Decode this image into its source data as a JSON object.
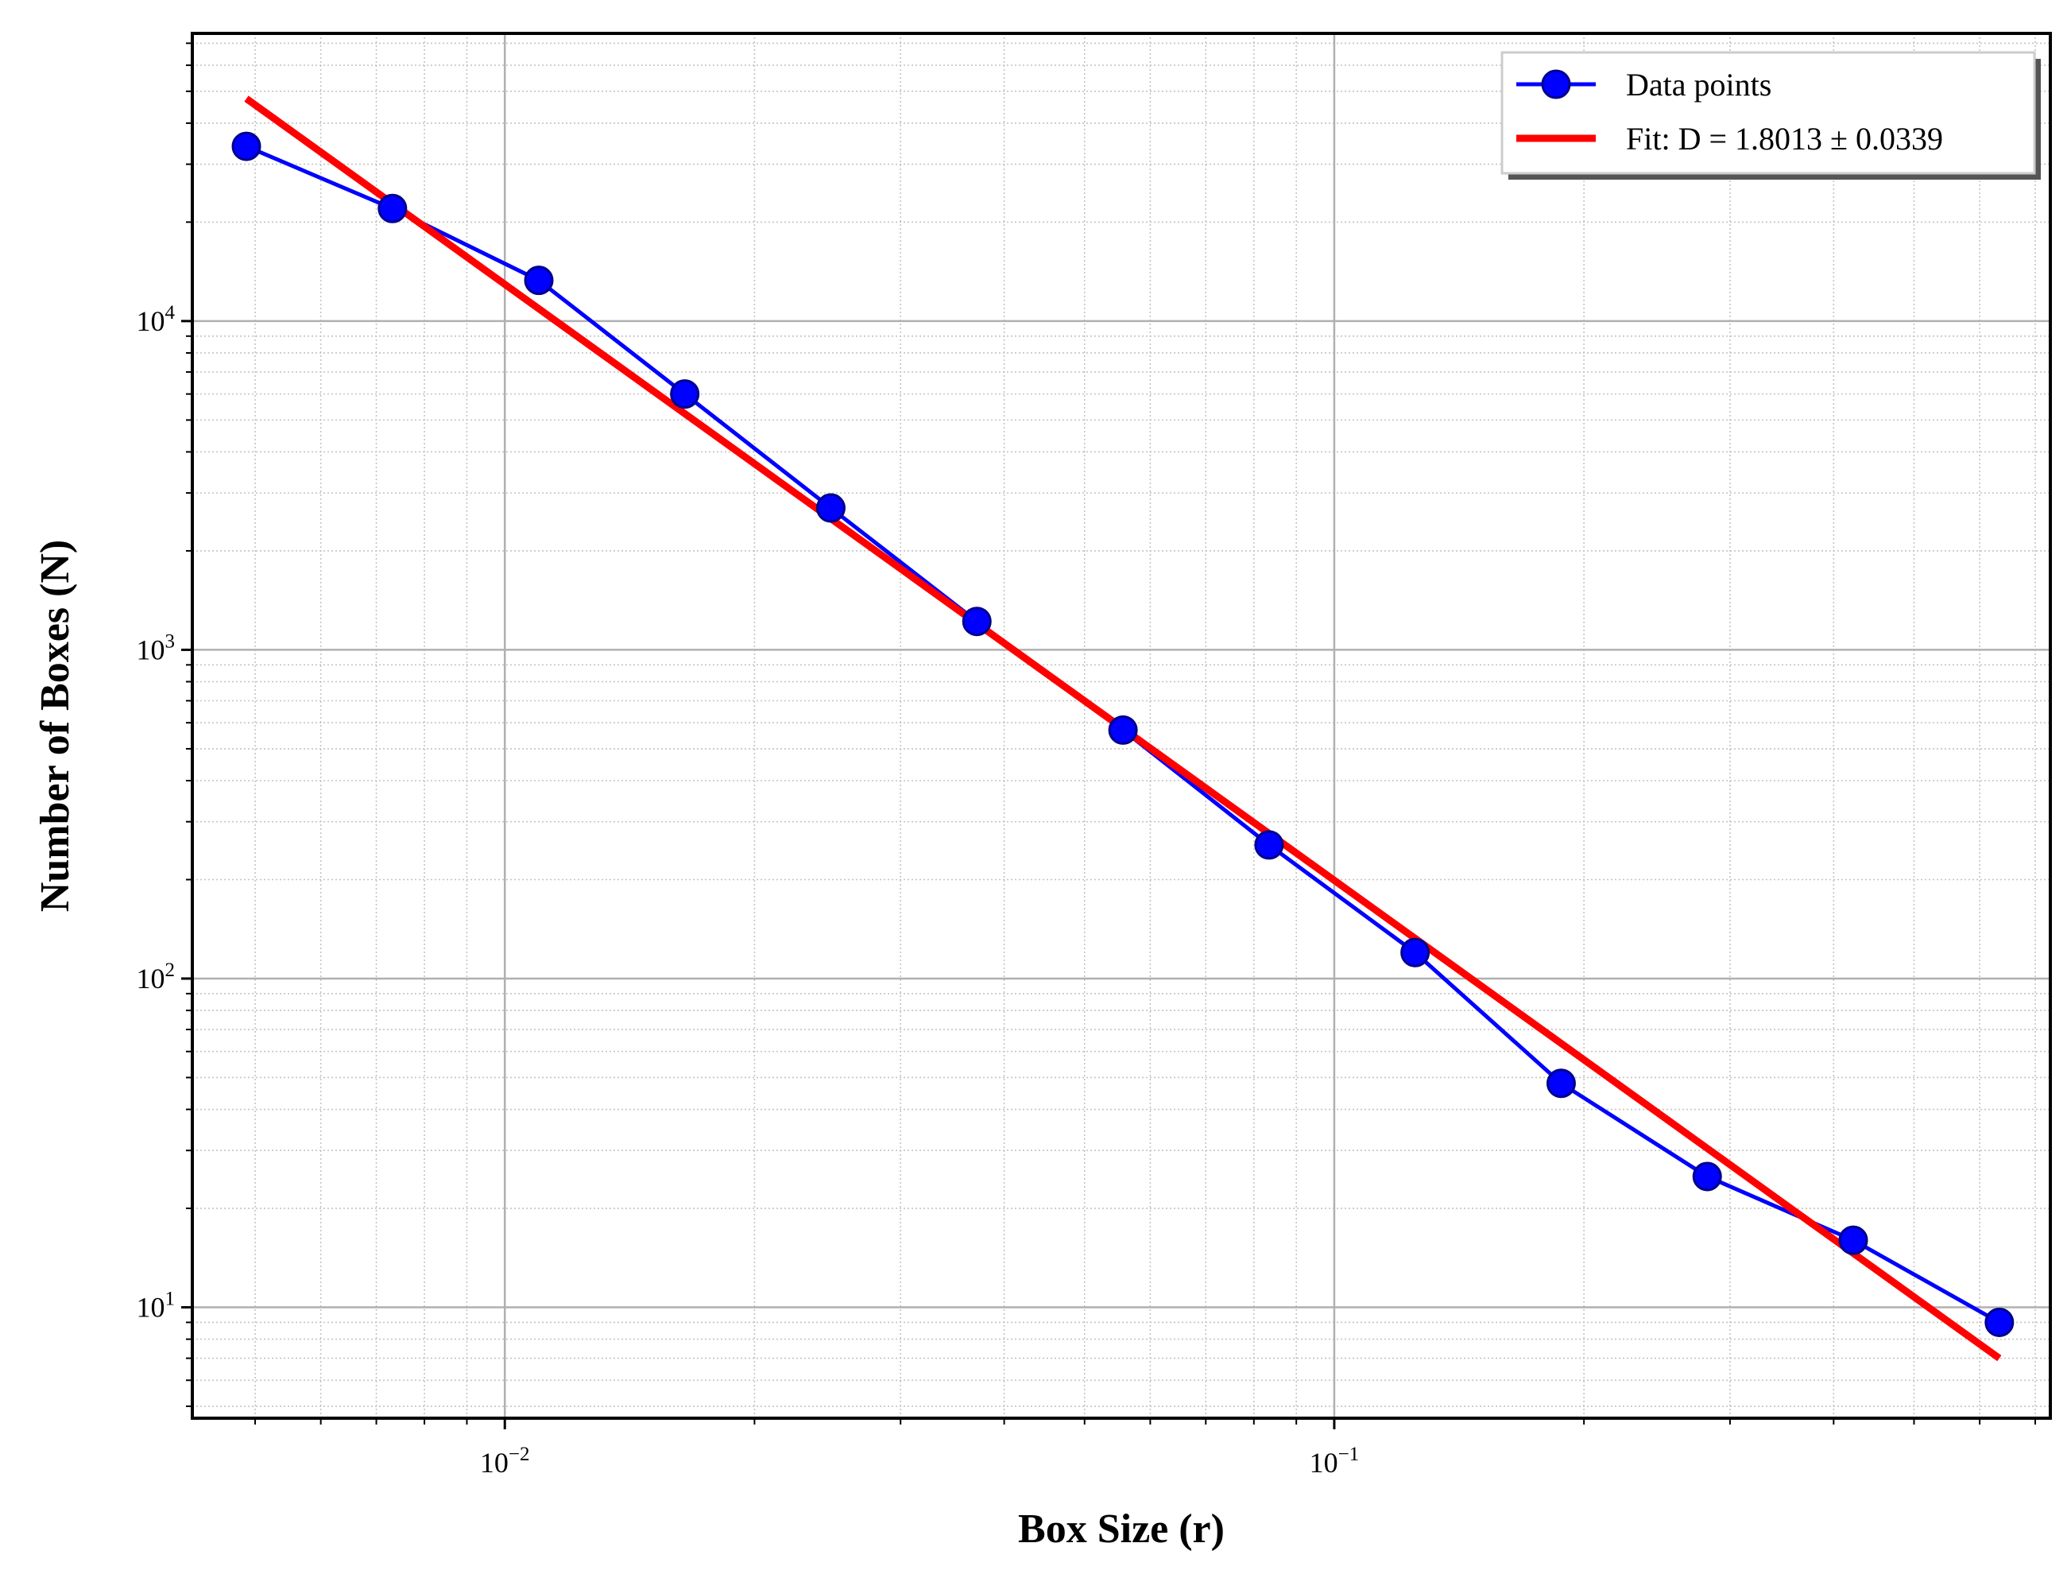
{
  "chart_data": {
    "type": "line",
    "title": "",
    "xlabel": "Box Size (r)",
    "ylabel": "Number of Boxes (N)",
    "xscale": "log",
    "yscale": "log",
    "xlim": [
      0.0042,
      0.73
    ],
    "ylim": [
      4.6,
      75000
    ],
    "x_ticks": [
      {
        "value": 0.01,
        "base": "10",
        "exp": "−2"
      },
      {
        "value": 0.1,
        "base": "10",
        "exp": "−1"
      }
    ],
    "y_ticks": [
      {
        "value": 10,
        "base": "10",
        "exp": "1"
      },
      {
        "value": 100,
        "base": "10",
        "exp": "2"
      },
      {
        "value": 1000,
        "base": "10",
        "exp": "3"
      },
      {
        "value": 10000,
        "base": "10",
        "exp": "4"
      }
    ],
    "grid": "major and minor",
    "legend_position": "top-right",
    "series": [
      {
        "name": "Data points",
        "kind": "line-marker",
        "color": "#0000ff",
        "x": [
          0.00488,
          0.00732,
          0.01099,
          0.01648,
          0.02472,
          0.03708,
          0.05563,
          0.08344,
          0.12516,
          0.18774,
          0.28161,
          0.42241,
          0.63362
        ],
        "y": [
          34000,
          22000,
          13300,
          6000,
          2700,
          1220,
          570,
          255,
          120,
          48,
          25,
          16,
          9
        ]
      },
      {
        "name": "Fit: D = 1.8013 ± 0.0339",
        "kind": "line",
        "color": "#ff0000",
        "x": [
          0.00488,
          0.63362
        ],
        "y": [
          47500,
          7.0
        ]
      }
    ]
  }
}
